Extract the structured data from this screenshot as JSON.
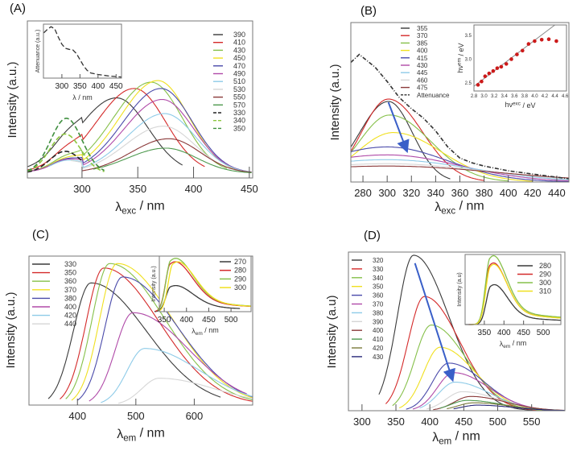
{
  "panels": [
    {
      "id": "A",
      "label": "(A)",
      "ylabel": "Intensity (a.u.)",
      "xlabel": {
        "symbol": "λ",
        "sub": "exc",
        "unit": " / nm"
      },
      "chart_data": {
        "type": "line",
        "xlim": [
          251,
          453
        ],
        "ylim": [
          0,
          1
        ],
        "xticks": [
          300,
          350,
          400,
          450
        ],
        "legend_placement": "top-right",
        "series": [
          {
            "name": "390",
            "color": "#3a3a3a",
            "peak_nm": 331,
            "peak_intensity": 0.48,
            "range": [
              251,
              390
            ]
          },
          {
            "name": "410",
            "color": "#d42a2a",
            "peak_nm": 347,
            "peak_intensity": 0.54,
            "range": [
              251,
              410
            ]
          },
          {
            "name": "430",
            "color": "#86c04a",
            "peak_nm": 362,
            "peak_intensity": 0.58,
            "range": [
              251,
              430
            ]
          },
          {
            "name": "450",
            "color": "#f0e020",
            "peak_nm": 368,
            "peak_intensity": 0.59,
            "range": [
              251,
              452
            ]
          },
          {
            "name": "470",
            "color": "#4a4aaa",
            "peak_nm": 371,
            "peak_intensity": 0.54,
            "range": [
              251,
              452
            ]
          },
          {
            "name": "490",
            "color": "#b04aa8",
            "peak_nm": 372,
            "peak_intensity": 0.47,
            "range": [
              251,
              452
            ]
          },
          {
            "name": "510",
            "color": "#8ecbe8",
            "peak_nm": 374,
            "peak_intensity": 0.38,
            "range": [
              270,
              452
            ]
          },
          {
            "name": "530",
            "color": "#d6d6d6",
            "peak_nm": 373,
            "peak_intensity": 0.3,
            "range": [
              290,
              452
            ]
          },
          {
            "name": "550",
            "color": "#8b3a3a",
            "peak_nm": 378,
            "peak_intensity": 0.22,
            "range": [
              300,
              452
            ]
          },
          {
            "name": "570",
            "color": "#4f9a4f",
            "peak_nm": 375,
            "peak_intensity": 0.16,
            "range": [
              310,
              452
            ]
          },
          {
            "name": "330",
            "color": "#222222",
            "dash": true,
            "peak_nm": 285,
            "peak_intensity": 0.14,
            "range": [
              251,
              300
            ]
          },
          {
            "name": "340",
            "color": "#8cc63f",
            "dash": true,
            "peak_nm": 285,
            "peak_intensity": 0.25,
            "range": [
              251,
              320
            ]
          },
          {
            "name": "350",
            "color": "#3f8f3f",
            "dash": true,
            "peak_nm": 286,
            "peak_intensity": 0.35,
            "range": [
              251,
              320
            ]
          }
        ]
      },
      "inset": {
        "ylabel": "Attenuance (a.u.)",
        "xlabel": "λ / nm",
        "chart_data": {
          "type": "line",
          "xlim": [
            249,
            465
          ],
          "ylim": [
            0,
            1.05
          ],
          "xticks": [
            300,
            350,
            400,
            450
          ],
          "series": [
            {
              "color": "#333333",
              "dash": true,
              "x": [
                250,
                260,
                270,
                280,
                290,
                300,
                310,
                320,
                330,
                340,
                350,
                360,
                370,
                380,
                400,
                430,
                465
              ],
              "y": [
                0.88,
                0.95,
                1.0,
                0.96,
                0.8,
                0.66,
                0.58,
                0.56,
                0.55,
                0.48,
                0.36,
                0.24,
                0.15,
                0.1,
                0.07,
                0.04,
                0.02
              ]
            }
          ]
        }
      }
    },
    {
      "id": "B",
      "label": "(B)",
      "ylabel": "Intensity (a.u.)",
      "xlabel": {
        "symbol": "λ",
        "sub": "exc",
        "unit": " / nm"
      },
      "chart_data": {
        "type": "line",
        "xlim": [
          270,
          450
        ],
        "ylim": [
          0,
          1
        ],
        "xticks": [
          280,
          300,
          320,
          340,
          360,
          380,
          400,
          420,
          440
        ],
        "legend_placement": "top-center",
        "series": [
          {
            "name": "355",
            "color": "#3a3a3a",
            "peak_nm": 301,
            "peak_intensity": 0.505,
            "range": [
              270,
              352
            ]
          },
          {
            "name": "370",
            "color": "#d42a2a",
            "peak_nm": 301,
            "peak_intensity": 0.52,
            "range": [
              270,
              380
            ]
          },
          {
            "name": "385",
            "color": "#86c04a",
            "peak_nm": 302,
            "peak_intensity": 0.42,
            "range": [
              270,
              400
            ]
          },
          {
            "name": "400",
            "color": "#f0e020",
            "peak_nm": 305,
            "peak_intensity": 0.31,
            "range": [
              270,
              420
            ]
          },
          {
            "name": "415",
            "color": "#4a4aaa",
            "peak_nm": 300,
            "peak_intensity": 0.22,
            "range": [
              270,
              450
            ]
          },
          {
            "name": "430",
            "color": "#b04aa8",
            "peak_nm": 300,
            "peak_intensity": 0.17,
            "range": [
              270,
              450
            ]
          },
          {
            "name": "445",
            "color": "#8ecbe8",
            "peak_nm": 300,
            "peak_intensity": 0.14,
            "range": [
              270,
              450
            ]
          },
          {
            "name": "460",
            "color": "#d6d6d6",
            "peak_nm": 300,
            "peak_intensity": 0.115,
            "range": [
              270,
              450
            ]
          },
          {
            "name": "475",
            "color": "#8b3a3a",
            "peak_nm": 300,
            "peak_intensity": 0.1,
            "range": [
              270,
              450
            ]
          },
          {
            "name": "Attenuance",
            "color": "#333333",
            "dash": true,
            "x": [
              270,
              277,
              290,
              300,
              310,
              320,
              330,
              340,
              350,
              360,
              370,
              380,
              400,
              420,
              450
            ],
            "y": [
              0.75,
              0.8,
              0.72,
              0.63,
              0.53,
              0.46,
              0.4,
              0.32,
              0.22,
              0.15,
              0.12,
              0.1,
              0.07,
              0.05,
              0.02
            ]
          }
        ],
        "arrow": {
          "from": [
            301,
            0.5
          ],
          "to": [
            316,
            0.2
          ],
          "color": "#3a5fc8"
        }
      },
      "inset": {
        "ylabel": {
          "symbol": "hν",
          "sup": "em",
          "unit": " / eV"
        },
        "xlabel": {
          "symbol": "hν",
          "sup": "exc",
          "unit": " / eV"
        },
        "chart_data": {
          "type": "scatter",
          "xlim": [
            2.8,
            4.63
          ],
          "ylim": [
            2.33,
            3.72
          ],
          "xticks": [
            2.8,
            3.0,
            3.2,
            3.4,
            3.6,
            3.8,
            4.0,
            4.2,
            4.4,
            4.6
          ],
          "yticks": [
            2.5,
            3.0,
            3.5
          ],
          "points": {
            "color": "#cc1a1a",
            "x": [
              2.88,
              2.95,
              3.02,
              3.1,
              3.18,
              3.26,
              3.34,
              3.44,
              3.54,
              3.65,
              3.76,
              3.88,
              4.0,
              4.14,
              4.28,
              4.43
            ],
            "y": [
              2.46,
              2.53,
              2.64,
              2.7,
              2.75,
              2.81,
              2.84,
              2.9,
              3.0,
              3.1,
              3.18,
              3.32,
              3.38,
              3.41,
              3.42,
              3.38
            ]
          },
          "fit_line": {
            "color": "#888888",
            "x": [
              2.8,
              4.4
            ],
            "y": [
              2.43,
              3.72
            ]
          }
        }
      }
    },
    {
      "id": "C",
      "label": "(C)",
      "ylabel": "Intensity (a.u.)",
      "xlabel": {
        "symbol": "λ",
        "sub": "em",
        "unit": " / nm"
      },
      "chart_data": {
        "type": "line",
        "xlim": [
          317,
          700
        ],
        "ylim": [
          0,
          1
        ],
        "xticks": [
          400,
          500,
          600
        ],
        "legend_placement": "top-left",
        "series": [
          {
            "name": "330",
            "color": "#3a3a3a",
            "peak_nm": 423,
            "peak_intensity": 0.82,
            "range": [
              350,
              645
            ]
          },
          {
            "name": "350",
            "color": "#d42a2a",
            "peak_nm": 445,
            "peak_intensity": 0.92,
            "range": [
              370,
              700
            ]
          },
          {
            "name": "360",
            "color": "#86c04a",
            "peak_nm": 455,
            "peak_intensity": 0.95,
            "range": [
              380,
              700
            ]
          },
          {
            "name": "370",
            "color": "#f0e020",
            "peak_nm": 468,
            "peak_intensity": 0.95,
            "range": [
              390,
              700
            ]
          },
          {
            "name": "380",
            "color": "#4a4aaa",
            "peak_nm": 477,
            "peak_intensity": 0.86,
            "range": [
              400,
              700
            ]
          },
          {
            "name": "400",
            "color": "#b04aa8",
            "peak_nm": 495,
            "peak_intensity": 0.62,
            "range": [
              420,
              690
            ]
          },
          {
            "name": "420",
            "color": "#8ecbe8",
            "peak_nm": 515,
            "peak_intensity": 0.38,
            "range": [
              440,
              700
            ]
          },
          {
            "name": "440",
            "color": "#d6d6d6",
            "peak_nm": 540,
            "peak_intensity": 0.18,
            "range": [
              470,
              700
            ]
          }
        ]
      },
      "inset": {
        "ylabel": "Intensity (a.u.)",
        "xlabel": {
          "symbol": "λ",
          "sub": "em",
          "unit": " / nm"
        },
        "chart_data": {
          "type": "line",
          "xlim": [
            339,
            545
          ],
          "ylim": [
            0,
            1
          ],
          "xticks": [
            350,
            400,
            450,
            500
          ],
          "series": [
            {
              "name": "270",
              "color": "#3a3a3a",
              "peak_nm": 365,
              "peak_intensity": 0.45,
              "range": [
                328,
                520
              ]
            },
            {
              "name": "280",
              "color": "#d42a2a",
              "peak_nm": 364,
              "peak_intensity": 0.86,
              "range": [
                330,
                545
              ]
            },
            {
              "name": "290",
              "color": "#86c04a",
              "peak_nm": 365,
              "peak_intensity": 0.92,
              "range": [
                335,
                545
              ]
            },
            {
              "name": "300",
              "color": "#f0e020",
              "peak_nm": 370,
              "peak_intensity": 0.86,
              "range": [
                340,
                545
              ]
            }
          ]
        }
      }
    },
    {
      "id": "D",
      "label": "(D)",
      "ylabel": "Intensity (a.u)",
      "xlabel": {
        "symbol": "λ",
        "sub": "em",
        "unit": " / nm"
      },
      "chart_data": {
        "type": "line",
        "xlim": [
          280,
          599
        ],
        "ylim": [
          0,
          1
        ],
        "xticks": [
          300,
          350,
          400,
          450,
          500,
          550
        ],
        "legend_placement": "top-left",
        "series": [
          {
            "name": "320",
            "color": "#3a3a3a",
            "peak_nm": 376,
            "peak_intensity": 0.98,
            "range": [
              325,
              599
            ]
          },
          {
            "name": "330",
            "color": "#d42a2a",
            "peak_nm": 392,
            "peak_intensity": 0.72,
            "range": [
              335,
              599
            ]
          },
          {
            "name": "340",
            "color": "#86c04a",
            "peak_nm": 402,
            "peak_intensity": 0.54,
            "range": [
              345,
              599
            ]
          },
          {
            "name": "350",
            "color": "#f0e020",
            "peak_nm": 415,
            "peak_intensity": 0.4,
            "range": [
              355,
              599
            ]
          },
          {
            "name": "360",
            "color": "#4a4aaa",
            "peak_nm": 428,
            "peak_intensity": 0.3,
            "range": [
              365,
              599
            ]
          },
          {
            "name": "370",
            "color": "#b04aa8",
            "peak_nm": 435,
            "peak_intensity": 0.24,
            "range": [
              375,
              599
            ]
          },
          {
            "name": "380",
            "color": "#8ecbe8",
            "peak_nm": 437,
            "peak_intensity": 0.18,
            "range": [
              385,
              599
            ]
          },
          {
            "name": "390",
            "color": "#d6d6d6",
            "peak_nm": 448,
            "peak_intensity": 0.12,
            "range": [
              395,
              599
            ]
          },
          {
            "name": "400",
            "color": "#8b3a3a",
            "peak_nm": 460,
            "peak_intensity": 0.09,
            "range": [
              405,
              599
            ]
          },
          {
            "name": "410",
            "color": "#4f9a4f",
            "peak_nm": 455,
            "peak_intensity": 0.065,
            "range": [
              415,
              599
            ]
          },
          {
            "name": "420",
            "color": "#7a7a3a",
            "peak_nm": 465,
            "peak_intensity": 0.05,
            "range": [
              425,
              599
            ]
          },
          {
            "name": "430",
            "color": "#2a2a7a",
            "peak_nm": 470,
            "peak_intensity": 0.035,
            "range": [
              435,
              599
            ]
          }
        ],
        "arrow": {
          "from": [
            378,
            0.93
          ],
          "to": [
            433,
            0.2
          ],
          "color": "#3a5fc8"
        }
      },
      "inset": {
        "ylabel": "Intensity (a.u)",
        "xlabel": {
          "symbol": "λ",
          "sub": "em",
          "unit": " / nm"
        },
        "chart_data": {
          "type": "line",
          "xlim": [
            301,
            545
          ],
          "ylim": [
            0,
            1
          ],
          "xticks": [
            350,
            400,
            450,
            500
          ],
          "series": [
            {
              "name": "280",
              "color": "#3a3a3a",
              "peak_nm": 367,
              "peak_intensity": 0.55,
              "range": [
                301,
                545
              ]
            },
            {
              "name": "290",
              "color": "#d42a2a",
              "peak_nm": 365,
              "peak_intensity": 0.85,
              "range": [
                310,
                545
              ]
            },
            {
              "name": "300",
              "color": "#86c04a",
              "peak_nm": 365,
              "peak_intensity": 0.95,
              "range": [
                312,
                545
              ]
            },
            {
              "name": "310",
              "color": "#f0e020",
              "peak_nm": 366,
              "peak_intensity": 0.83,
              "range": [
                315,
                545
              ]
            }
          ]
        }
      }
    }
  ]
}
